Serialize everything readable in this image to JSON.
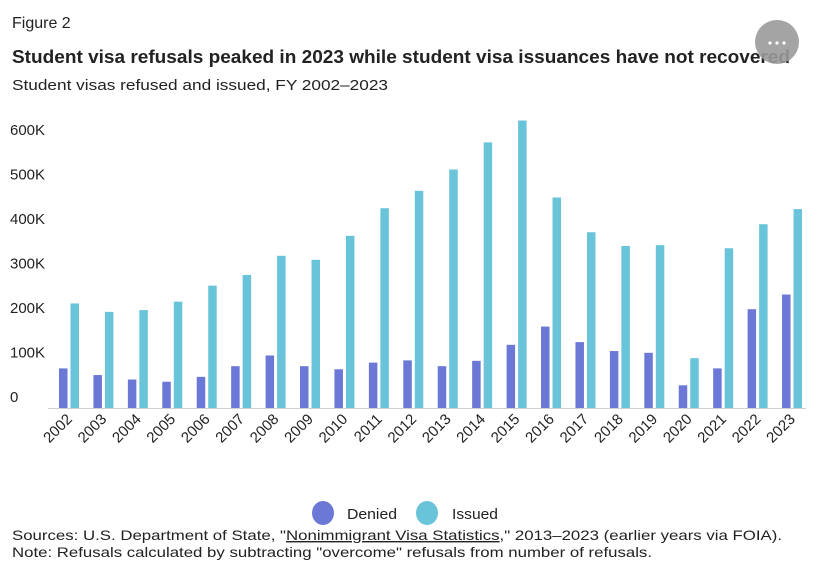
{
  "figure_label": "Figure 2",
  "menu": {
    "icon": "more-horizontal-icon"
  },
  "colors": {
    "denied": "#6b78d6",
    "issued": "#6ac4d9",
    "menu": "#9a9a9a"
  },
  "chart_data": {
    "type": "bar",
    "title": "Student visa refusals peaked in 2023 while student visa issuances have not recovered",
    "subtitle": "Student visas refused and issued, FY 2002–2023",
    "xlabel": "",
    "ylabel": "",
    "ylim": [
      0,
      650000
    ],
    "yticks": [
      0,
      100000,
      200000,
      300000,
      400000,
      500000,
      600000
    ],
    "ytick_labels": [
      "0",
      "100K",
      "200K",
      "300K",
      "400K",
      "500K",
      "600K"
    ],
    "grid": false,
    "legend_position": "bottom",
    "categories": [
      "2002",
      "2003",
      "2004",
      "2005",
      "2006",
      "2007",
      "2008",
      "2009",
      "2010",
      "2011",
      "2012",
      "2013",
      "2014",
      "2015",
      "2016",
      "2017",
      "2018",
      "2019",
      "2020",
      "2021",
      "2022",
      "2023"
    ],
    "series": [
      {
        "name": "Denied",
        "values": [
          89000,
          74000,
          64000,
          59000,
          70000,
          94000,
          118000,
          94000,
          87000,
          102000,
          107000,
          94000,
          106000,
          142000,
          183000,
          148000,
          128000,
          124000,
          51000,
          89000,
          222000,
          255000
        ]
      },
      {
        "name": "Issued",
        "values": [
          235000,
          216000,
          220000,
          239000,
          275000,
          299000,
          342000,
          333000,
          387000,
          449000,
          488000,
          536000,
          597000,
          646000,
          473000,
          395000,
          364000,
          366000,
          112000,
          359000,
          413000,
          447000
        ]
      }
    ]
  },
  "footer": {
    "sources_prefix": "Sources: U.S. Department of State, \"",
    "sources_link": "Nonimmigrant Visa Statistics",
    "sources_suffix": ",\" 2013–2023 (earlier years via FOIA).",
    "note": "Note: Refusals calculated by subtracting \"overcome\" refusals from number of refusals."
  }
}
